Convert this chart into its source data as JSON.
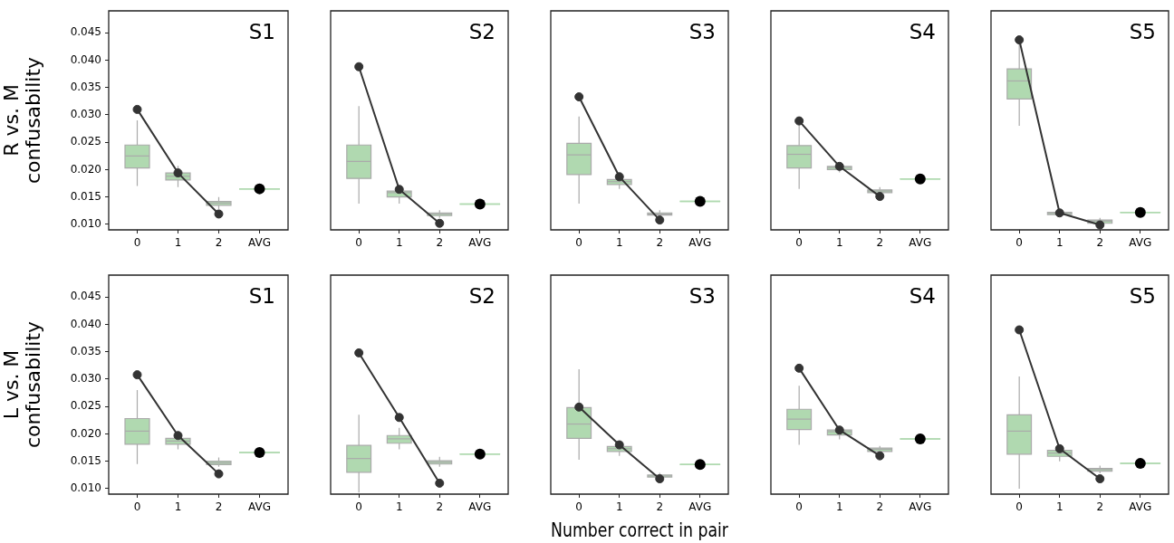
{
  "chart_data": [
    {
      "type": "line",
      "title": "S1",
      "ylabel": "R vs. M\nconfusability",
      "categories": [
        "0",
        "1",
        "2",
        "AVG"
      ],
      "ylim": [
        0.009,
        0.049
      ],
      "yticks": [
        {
          "value": 0.01,
          "label": "0.010"
        },
        {
          "value": 0.015,
          "label": "0.015"
        },
        {
          "value": 0.02,
          "label": "0.020"
        },
        {
          "value": 0.025,
          "label": "0.025"
        },
        {
          "value": 0.03,
          "label": "0.030"
        },
        {
          "value": 0.035,
          "label": "0.035"
        },
        {
          "value": 0.04,
          "label": "0.040"
        },
        {
          "value": 0.045,
          "label": "0.045"
        }
      ],
      "marker": "circle",
      "line_style": "solid",
      "legend": false,
      "series": [
        {
          "type": "box",
          "color": "#b0d9b0",
          "boxes": [
            {
              "low": 0.017,
              "q1": 0.0203,
              "median": 0.0225,
              "q3": 0.0245,
              "high": 0.029
            },
            {
              "low": 0.0168,
              "q1": 0.0181,
              "median": 0.0188,
              "q3": 0.0194,
              "high": 0.0207
            },
            {
              "low": 0.0128,
              "q1": 0.0135,
              "median": 0.0139,
              "q3": 0.0142,
              "high": 0.015
            },
            {
              "low": 0.0165,
              "q1": 0.0165,
              "median": 0.0165,
              "q3": 0.0165,
              "high": 0.0165
            }
          ]
        },
        {
          "type": "line",
          "color": "#333333",
          "values": [
            0.031,
            0.0194,
            0.0119,
            null
          ]
        },
        {
          "type": "scatter",
          "color": "#000000",
          "values": [
            null,
            null,
            null,
            0.0165
          ]
        }
      ]
    },
    {
      "type": "line",
      "title": "S2",
      "categories": [
        "0",
        "1",
        "2",
        "AVG"
      ],
      "ylim": [
        0.009,
        0.049
      ],
      "tick_labels": "x",
      "marker": "circle",
      "line_style": "solid",
      "legend": false,
      "series": [
        {
          "type": "box",
          "color": "#b0d9b0",
          "boxes": [
            {
              "low": 0.0138,
              "q1": 0.0184,
              "median": 0.0215,
              "q3": 0.0245,
              "high": 0.0316
            },
            {
              "low": 0.0138,
              "q1": 0.015,
              "median": 0.0158,
              "q3": 0.0161,
              "high": 0.0168
            },
            {
              "low": 0.0112,
              "q1": 0.0116,
              "median": 0.0119,
              "q3": 0.0121,
              "high": 0.0126
            },
            {
              "low": 0.0137,
              "q1": 0.0137,
              "median": 0.0137,
              "q3": 0.0137,
              "high": 0.0137
            }
          ]
        },
        {
          "type": "line",
          "color": "#333333",
          "values": [
            0.0388,
            0.0164,
            0.0102,
            null
          ]
        },
        {
          "type": "scatter",
          "color": "#000000",
          "values": [
            null,
            null,
            null,
            0.0137
          ]
        }
      ]
    },
    {
      "type": "line",
      "title": "S3",
      "categories": [
        "0",
        "1",
        "2",
        "AVG"
      ],
      "ylim": [
        0.009,
        0.049
      ],
      "tick_labels": "x",
      "marker": "circle",
      "line_style": "solid",
      "legend": false,
      "series": [
        {
          "type": "box",
          "color": "#b0d9b0",
          "boxes": [
            {
              "low": 0.0138,
              "q1": 0.0191,
              "median": 0.0227,
              "q3": 0.0248,
              "high": 0.0297
            },
            {
              "low": 0.0165,
              "q1": 0.0173,
              "median": 0.0178,
              "q3": 0.0182,
              "high": 0.0192
            },
            {
              "low": 0.0113,
              "q1": 0.0117,
              "median": 0.0119,
              "q3": 0.0121,
              "high": 0.0126
            },
            {
              "low": 0.0142,
              "q1": 0.0142,
              "median": 0.0142,
              "q3": 0.0142,
              "high": 0.0142
            }
          ]
        },
        {
          "type": "line",
          "color": "#333333",
          "values": [
            0.0333,
            0.0187,
            0.0108,
            null
          ]
        },
        {
          "type": "scatter",
          "color": "#000000",
          "values": [
            null,
            null,
            null,
            0.0142
          ]
        }
      ]
    },
    {
      "type": "line",
      "title": "S4",
      "categories": [
        "0",
        "1",
        "2",
        "AVG"
      ],
      "ylim": [
        0.009,
        0.049
      ],
      "tick_labels": "x",
      "marker": "circle",
      "line_style": "solid",
      "legend": false,
      "series": [
        {
          "type": "box",
          "color": "#b0d9b0",
          "boxes": [
            {
              "low": 0.0165,
              "q1": 0.0203,
              "median": 0.0228,
              "q3": 0.0244,
              "high": 0.0282
            },
            {
              "low": 0.0195,
              "q1": 0.02,
              "median": 0.0204,
              "q3": 0.0206,
              "high": 0.021
            },
            {
              "low": 0.0153,
              "q1": 0.0158,
              "median": 0.0161,
              "q3": 0.0163,
              "high": 0.0168
            },
            {
              "low": 0.0183,
              "q1": 0.0183,
              "median": 0.0183,
              "q3": 0.0183,
              "high": 0.0183
            }
          ]
        },
        {
          "type": "line",
          "color": "#333333",
          "values": [
            0.0289,
            0.0206,
            0.0151,
            null
          ]
        },
        {
          "type": "scatter",
          "color": "#000000",
          "values": [
            null,
            null,
            null,
            0.0183
          ]
        }
      ]
    },
    {
      "type": "line",
      "title": "S5",
      "categories": [
        "0",
        "1",
        "2",
        "AVG"
      ],
      "ylim": [
        0.009,
        0.049
      ],
      "tick_labels": "x",
      "marker": "circle",
      "line_style": "solid",
      "legend": false,
      "series": [
        {
          "type": "box",
          "color": "#b0d9b0",
          "boxes": [
            {
              "low": 0.028,
              "q1": 0.0329,
              "median": 0.0362,
              "q3": 0.0384,
              "high": 0.0435
            },
            {
              "low": 0.0115,
              "q1": 0.0118,
              "median": 0.012,
              "q3": 0.0122,
              "high": 0.0127
            },
            {
              "low": 0.0097,
              "q1": 0.0102,
              "median": 0.0106,
              "q3": 0.0108,
              "high": 0.0112
            },
            {
              "low": 0.0122,
              "q1": 0.0122,
              "median": 0.0122,
              "q3": 0.0122,
              "high": 0.0122
            }
          ]
        },
        {
          "type": "line",
          "color": "#333333",
          "values": [
            0.0437,
            0.0121,
            0.0099,
            null
          ]
        },
        {
          "type": "scatter",
          "color": "#000000",
          "values": [
            null,
            null,
            null,
            0.0122
          ]
        }
      ]
    },
    {
      "type": "line",
      "title": "S1",
      "ylabel": "L vs. M\nconfusability",
      "categories": [
        "0",
        "1",
        "2",
        "AVG"
      ],
      "ylim": [
        0.009,
        0.049
      ],
      "yticks": [
        {
          "value": 0.01,
          "label": "0.010"
        },
        {
          "value": 0.015,
          "label": "0.015"
        },
        {
          "value": 0.02,
          "label": "0.020"
        },
        {
          "value": 0.025,
          "label": "0.025"
        },
        {
          "value": 0.03,
          "label": "0.030"
        },
        {
          "value": 0.035,
          "label": "0.035"
        },
        {
          "value": 0.04,
          "label": "0.040"
        },
        {
          "value": 0.045,
          "label": "0.045"
        }
      ],
      "marker": "circle",
      "line_style": "solid",
      "legend": false,
      "series": [
        {
          "type": "box",
          "color": "#b0d9b0",
          "boxes": [
            {
              "low": 0.0145,
              "q1": 0.0181,
              "median": 0.0205,
              "q3": 0.0228,
              "high": 0.028
            },
            {
              "low": 0.0172,
              "q1": 0.0181,
              "median": 0.0187,
              "q3": 0.0192,
              "high": 0.0205
            },
            {
              "low": 0.014,
              "q1": 0.0144,
              "median": 0.0147,
              "q3": 0.015,
              "high": 0.0157
            },
            {
              "low": 0.0166,
              "q1": 0.0166,
              "median": 0.0166,
              "q3": 0.0166,
              "high": 0.0166
            }
          ]
        },
        {
          "type": "line",
          "color": "#333333",
          "values": [
            0.0308,
            0.0197,
            0.0127,
            null
          ]
        },
        {
          "type": "scatter",
          "color": "#000000",
          "values": [
            null,
            null,
            null,
            0.0166
          ]
        }
      ]
    },
    {
      "type": "line",
      "title": "S2",
      "categories": [
        "0",
        "1",
        "2",
        "AVG"
      ],
      "ylim": [
        0.009,
        0.049
      ],
      "tick_labels": "x",
      "marker": "circle",
      "line_style": "solid",
      "legend": false,
      "series": [
        {
          "type": "box",
          "color": "#b0d9b0",
          "boxes": [
            {
              "low": 0.0093,
              "q1": 0.013,
              "median": 0.0155,
              "q3": 0.0179,
              "high": 0.0235
            },
            {
              "low": 0.0172,
              "q1": 0.0183,
              "median": 0.0191,
              "q3": 0.0197,
              "high": 0.0211
            },
            {
              "low": 0.014,
              "q1": 0.0145,
              "median": 0.0148,
              "q3": 0.0151,
              "high": 0.0158
            },
            {
              "low": 0.0163,
              "q1": 0.0163,
              "median": 0.0163,
              "q3": 0.0163,
              "high": 0.0163
            }
          ]
        },
        {
          "type": "line",
          "color": "#333333",
          "values": [
            0.0348,
            0.023,
            0.011,
            null
          ]
        },
        {
          "type": "scatter",
          "color": "#000000",
          "values": [
            null,
            null,
            null,
            0.0163
          ]
        }
      ]
    },
    {
      "type": "line",
      "title": "S3",
      "xlabel": "Number correct in pair",
      "categories": [
        "0",
        "1",
        "2",
        "AVG"
      ],
      "ylim": [
        0.009,
        0.049
      ],
      "tick_labels": "x",
      "marker": "circle",
      "line_style": "solid",
      "legend": false,
      "series": [
        {
          "type": "box",
          "color": "#b0d9b0",
          "boxes": [
            {
              "low": 0.0153,
              "q1": 0.0192,
              "median": 0.0218,
              "q3": 0.0248,
              "high": 0.0318
            },
            {
              "low": 0.016,
              "q1": 0.0168,
              "median": 0.0173,
              "q3": 0.0177,
              "high": 0.0187
            },
            {
              "low": 0.0118,
              "q1": 0.0121,
              "median": 0.0123,
              "q3": 0.0125,
              "high": 0.0129
            },
            {
              "low": 0.0144,
              "q1": 0.0144,
              "median": 0.0144,
              "q3": 0.0144,
              "high": 0.0144
            }
          ]
        },
        {
          "type": "line",
          "color": "#333333",
          "values": [
            0.0249,
            0.018,
            0.0118,
            null
          ]
        },
        {
          "type": "scatter",
          "color": "#000000",
          "values": [
            null,
            null,
            null,
            0.0144
          ]
        }
      ]
    },
    {
      "type": "line",
      "title": "S4",
      "categories": [
        "0",
        "1",
        "2",
        "AVG"
      ],
      "ylim": [
        0.009,
        0.049
      ],
      "tick_labels": "x",
      "marker": "circle",
      "line_style": "solid",
      "legend": false,
      "series": [
        {
          "type": "box",
          "color": "#b0d9b0",
          "boxes": [
            {
              "low": 0.018,
              "q1": 0.0208,
              "median": 0.0227,
              "q3": 0.0245,
              "high": 0.0288
            },
            {
              "low": 0.019,
              "q1": 0.0198,
              "median": 0.0204,
              "q3": 0.0207,
              "high": 0.0212
            },
            {
              "low": 0.0163,
              "q1": 0.0168,
              "median": 0.0172,
              "q3": 0.0174,
              "high": 0.0178
            },
            {
              "low": 0.0191,
              "q1": 0.0191,
              "median": 0.0191,
              "q3": 0.0191,
              "high": 0.0191
            }
          ]
        },
        {
          "type": "line",
          "color": "#333333",
          "values": [
            0.032,
            0.0207,
            0.016,
            null
          ]
        },
        {
          "type": "scatter",
          "color": "#000000",
          "values": [
            null,
            null,
            null,
            0.0191
          ]
        }
      ]
    },
    {
      "type": "line",
      "title": "S5",
      "categories": [
        "0",
        "1",
        "2",
        "AVG"
      ],
      "ylim": [
        0.009,
        0.049
      ],
      "tick_labels": "x",
      "marker": "circle",
      "line_style": "solid",
      "legend": false,
      "series": [
        {
          "type": "box",
          "color": "#b0d9b0",
          "boxes": [
            {
              "low": 0.01,
              "q1": 0.0163,
              "median": 0.0205,
              "q3": 0.0235,
              "high": 0.0305
            },
            {
              "low": 0.015,
              "q1": 0.0159,
              "median": 0.0165,
              "q3": 0.017,
              "high": 0.0181
            },
            {
              "low": 0.0128,
              "q1": 0.0132,
              "median": 0.0135,
              "q3": 0.0137,
              "high": 0.0142
            },
            {
              "low": 0.0146,
              "q1": 0.0146,
              "median": 0.0146,
              "q3": 0.0146,
              "high": 0.0146
            }
          ]
        },
        {
          "type": "line",
          "color": "#333333",
          "values": [
            0.039,
            0.0173,
            0.0118,
            null
          ]
        },
        {
          "type": "scatter",
          "color": "#000000",
          "values": [
            null,
            null,
            null,
            0.0146
          ]
        }
      ]
    }
  ]
}
